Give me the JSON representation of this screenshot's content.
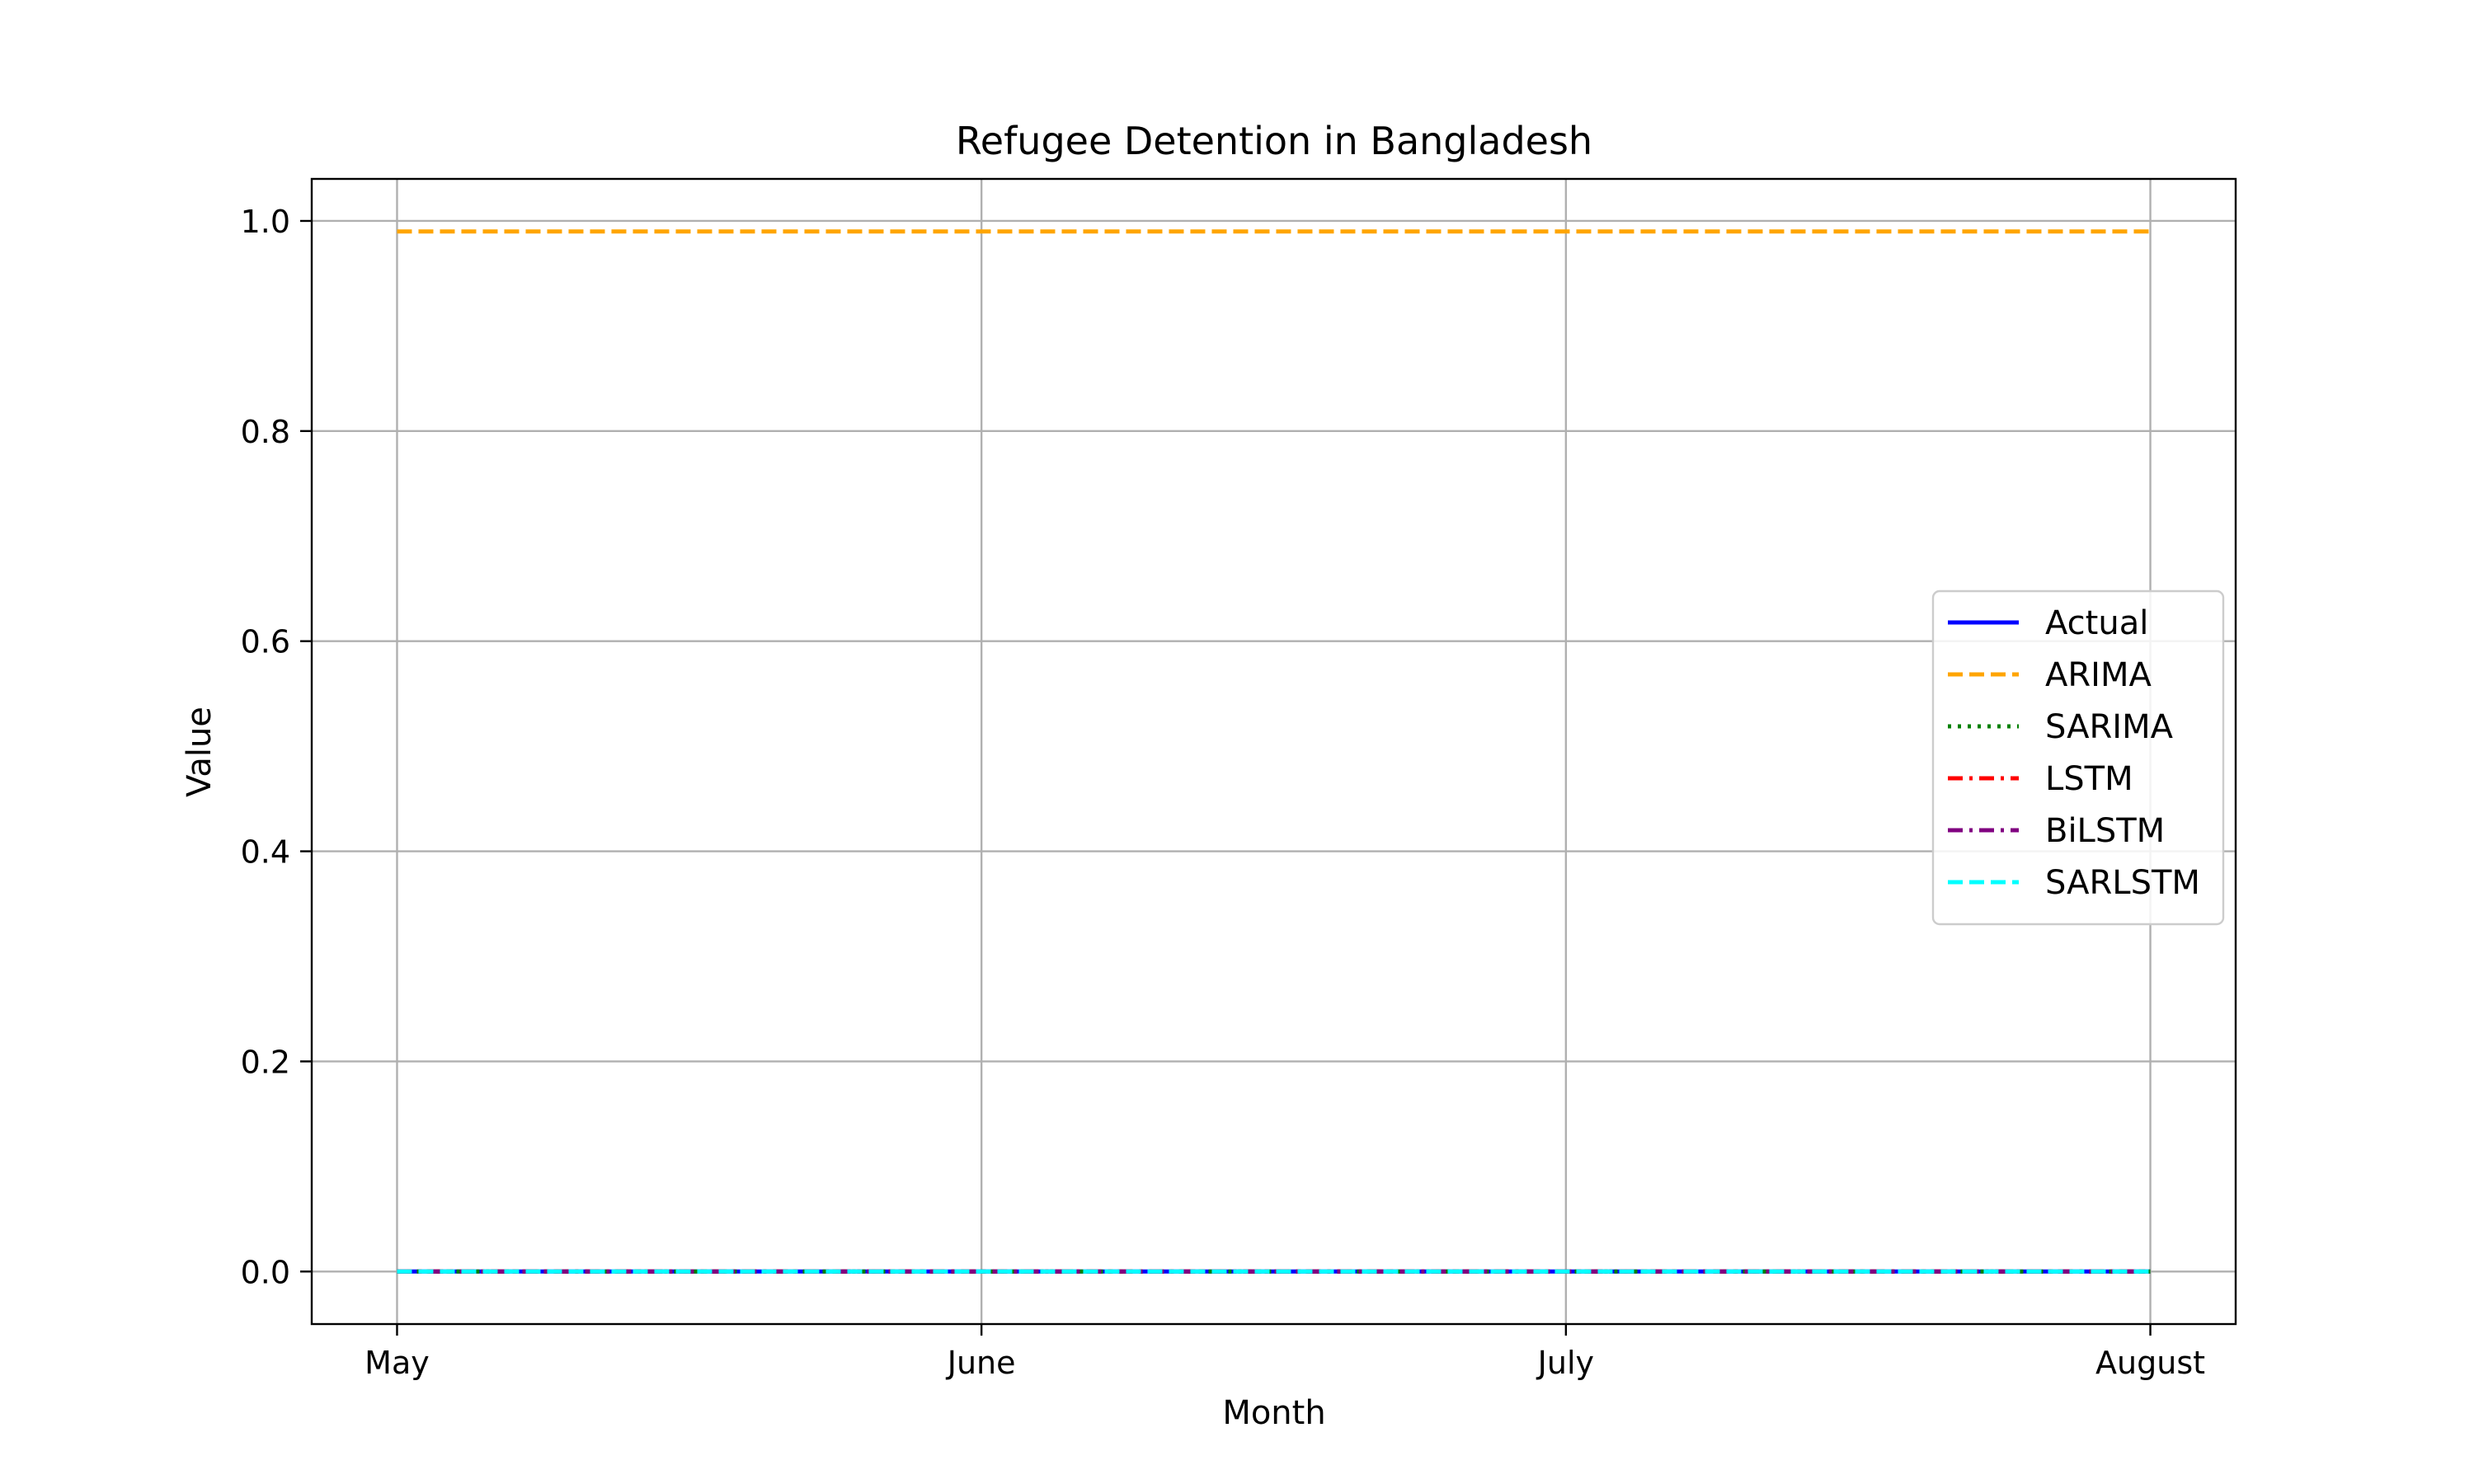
{
  "chart_data": {
    "type": "line",
    "title": "Refugee Detention in Bangladesh",
    "xlabel": "Month",
    "ylabel": "Value",
    "x": [
      "May",
      "June",
      "July",
      "August"
    ],
    "ylim": [
      -0.05,
      1.04
    ],
    "yticks": [
      "0.0",
      "0.2",
      "0.4",
      "0.6",
      "0.8",
      "1.0"
    ],
    "grid": true,
    "legend_position": "center-right",
    "series": [
      {
        "name": "Actual",
        "values": [
          0,
          0,
          0,
          0
        ],
        "color": "#0000ff",
        "style": "solid"
      },
      {
        "name": "ARIMA",
        "values": [
          0.99,
          0.99,
          0.99,
          0.99
        ],
        "color": "#ffa500",
        "style": "dashed"
      },
      {
        "name": "SARIMA",
        "values": [
          0,
          0,
          0,
          0
        ],
        "color": "#008000",
        "style": "dotted"
      },
      {
        "name": "LSTM",
        "values": [
          0,
          0,
          0,
          0
        ],
        "color": "#ff0000",
        "style": "dashdot"
      },
      {
        "name": "BiLSTM",
        "values": [
          0,
          0,
          0,
          0
        ],
        "color": "#800080",
        "style": "dashdot"
      },
      {
        "name": "SARLSTM",
        "values": [
          0,
          0,
          0,
          0
        ],
        "color": "#00ffff",
        "style": "dashed"
      }
    ]
  }
}
